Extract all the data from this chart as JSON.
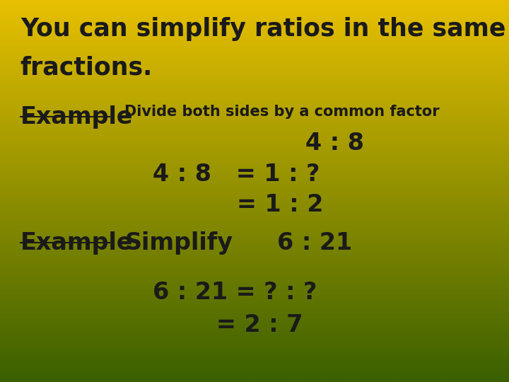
{
  "title_line1": "You can simplify ratios in the same way as",
  "title_line2": "fractions.",
  "example1_label": "Example",
  "example1_subtitle": "Divide both sides by a common factor",
  "ratio1": "4 : 8",
  "eq1_line1": "4 : 8   = 1 : ?",
  "eq1_line2": "= 1 : 2",
  "example2_label": "Example",
  "example2_subtitle": "Simplify",
  "ratio2": "6 : 21",
  "eq2_line1": "6 : 21 = ? : ?",
  "eq2_line2": "= 2 : 7",
  "bg_color_top": "#E8C000",
  "bg_color_bottom": "#3A6000",
  "text_color": "#1a1a1a",
  "title_fontsize": 25,
  "example_fontsize": 24,
  "subtitle_fontsize": 15,
  "math_fontsize": 24
}
